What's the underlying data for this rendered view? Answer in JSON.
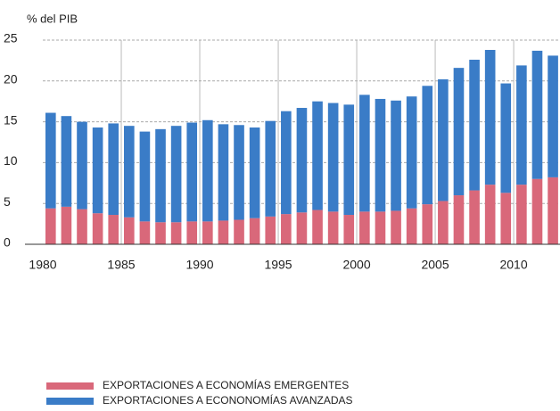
{
  "chart_data": {
    "type": "stacked_bar",
    "ylabel": "% del PIB",
    "x": [
      1980,
      1981,
      1982,
      1983,
      1984,
      1985,
      1986,
      1987,
      1988,
      1989,
      1990,
      1991,
      1992,
      1993,
      1994,
      1995,
      1996,
      1997,
      1998,
      1999,
      2000,
      2001,
      2002,
      2003,
      2004,
      2005,
      2006,
      2007,
      2008,
      2009,
      2010,
      2011,
      2012
    ],
    "series": [
      {
        "name": "EXPORTACIONES A ECONOMÍAS EMERGENTES",
        "color": "#d9687a",
        "values": [
          4.4,
          4.6,
          4.3,
          3.8,
          3.6,
          3.3,
          2.8,
          2.7,
          2.7,
          2.8,
          2.8,
          2.9,
          3.0,
          3.2,
          3.4,
          3.7,
          3.9,
          4.2,
          4.0,
          3.6,
          4.0,
          4.0,
          4.1,
          4.4,
          4.9,
          5.3,
          6.0,
          6.6,
          7.3,
          6.3,
          7.3,
          8.0,
          8.2
        ]
      },
      {
        "name": "EXPORTACIONES A ECONONOMÍAS AVANZADAS",
        "color": "#3a7cc7",
        "values": [
          11.7,
          11.1,
          10.7,
          10.5,
          11.2,
          11.2,
          11.0,
          11.4,
          11.8,
          12.1,
          12.4,
          11.8,
          11.6,
          11.1,
          11.7,
          12.6,
          12.8,
          13.3,
          13.3,
          13.5,
          14.3,
          13.8,
          13.5,
          13.7,
          14.5,
          14.9,
          15.6,
          16.0,
          16.5,
          13.4,
          14.6,
          15.7,
          14.9
        ]
      }
    ],
    "xlim": [
      1980,
      2012.95
    ],
    "xticks": [
      1980,
      1985,
      1990,
      1995,
      2000,
      2005,
      2010
    ],
    "ylim": [
      0,
      25
    ],
    "yticks": [
      0,
      5,
      10,
      15,
      20,
      25
    ],
    "grid": true
  }
}
